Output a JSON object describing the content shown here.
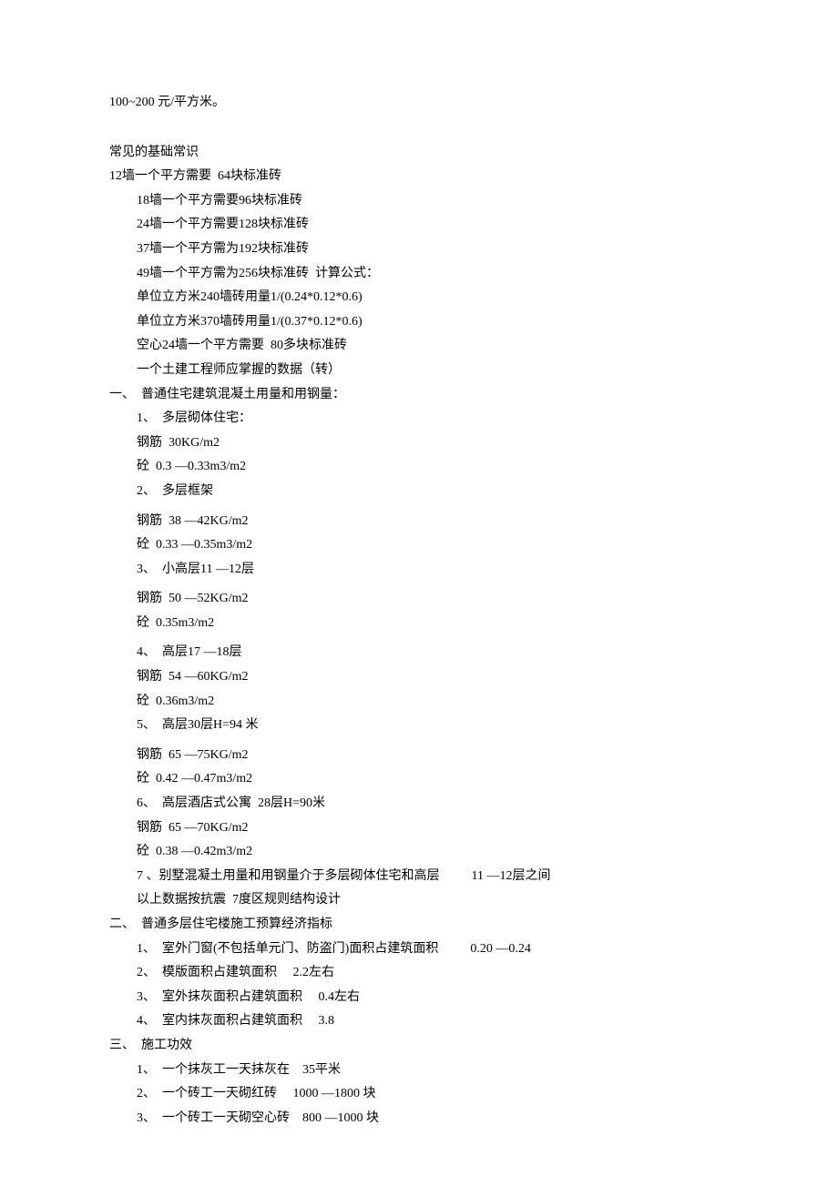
{
  "top_line": "100~200 元/平方米。",
  "section_basic_title": "常见的基础常识",
  "basic_lines": [
    "12墙一个平方需要  64块标准砖",
    "18墙一个平方需要96块标准砖",
    "24墙一个平方需要128块标准砖",
    "37墙一个平方需为192块标准砖",
    "49墙一个平方需为256块标准砖  计算公式：",
    "单位立方米240墙砖用量1/(0.24*0.12*0.6)",
    "单位立方米370墙砖用量1/(0.37*0.12*0.6)",
    "空心24墙一个平方需要  80多块标准砖",
    "一个土建工程师应掌握的数据（转）"
  ],
  "section1_title": "一、  普通住宅建筑混凝土用量和用钢量：",
  "section1_items": [
    "1、  多层砌体住宅：",
    "钢筋  30KG/m2",
    "砼  0.3 —0.33m3/m2",
    "2、  多层框架",
    "钢筋  38 —42KG/m2",
    "砼  0.33 —0.35m3/m2",
    "3、  小高层11 —12层",
    "钢筋  50 —52KG/m2",
    "砼  0.35m3/m2",
    "4、  高层17 —18层",
    "钢筋  54 —60KG/m2",
    "砼  0.36m3/m2",
    "5、  高层30层H=94 米",
    "钢筋  65 —75KG/m2",
    "砼  0.42 —0.47m3/m2",
    "6、  高层酒店式公寓  28层H=90米",
    "钢筋  65 —70KG/m2",
    "砼  0.38 —0.42m3/m2",
    "7 、别墅混凝土用量和用钢量介于多层砌体住宅和高层          11 —12层之间",
    "以上数据按抗震  7度区规则结构设计"
  ],
  "section1_gap_after": [
    3,
    6,
    8,
    12
  ],
  "section2_title": "二、  普通多层住宅楼施工预算经济指标",
  "section2_items": [
    "1、  室外门窗(不包括单元门、防盗门)面积占建筑面积          0.20 —0.24",
    "2、  模版面积占建筑面积     2.2左右",
    "3、  室外抹灰面积占建筑面积     0.4左右",
    "4、  室内抹灰面积占建筑面积     3.8"
  ],
  "section3_title": "三、  施工功效",
  "section3_items": [
    "1、  一个抹灰工一天抹灰在    35平米",
    "2、  一个砖工一天砌红砖     1000 —1800 块",
    "3、  一个砖工一天砌空心砖    800 —1000 块"
  ]
}
